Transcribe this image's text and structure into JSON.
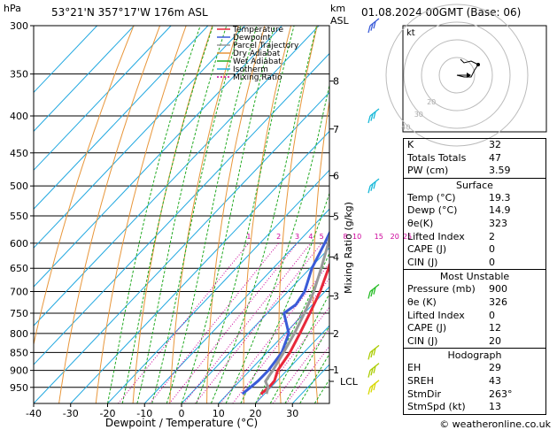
{
  "header": {
    "location": "53°21'N  357°17'W  176m  ASL",
    "datetime": "01.08.2024  00GMT  (Base: 06)",
    "pressure_unit": "hPa",
    "height_unit_1": "km",
    "height_unit_2": "ASL",
    "hodo_unit": "kt",
    "copyright": "© weatheronline.co.uk"
  },
  "chart_data": {
    "type": "line",
    "subtype": "skew-t log-p",
    "xlabel": "Dewpoint / Temperature (°C)",
    "ylabel_right": "Mixing Ratio (g/kg)",
    "x_ticks": [
      -40,
      -30,
      -20,
      -10,
      0,
      10,
      20,
      30
    ],
    "xlim": [
      -40,
      40
    ],
    "p_ticks": [
      300,
      350,
      400,
      450,
      500,
      550,
      600,
      650,
      700,
      750,
      800,
      850,
      900,
      950
    ],
    "plim": [
      300,
      1000
    ],
    "height_ticks": [
      {
        "km": "8",
        "p": 358
      },
      {
        "km": "7",
        "p": 417
      },
      {
        "km": "6",
        "p": 484
      },
      {
        "km": "5",
        "p": 551
      },
      {
        "km": "4",
        "p": 627
      },
      {
        "km": "3",
        "p": 710
      },
      {
        "km": "2",
        "p": 800
      },
      {
        "km": "1",
        "p": 898
      }
    ],
    "lcl": {
      "label": "LCL",
      "p": 932
    },
    "mixing_ratio_labels": [
      "1",
      "2",
      "3",
      "4",
      "5",
      "8",
      "10",
      "15",
      "20",
      "25"
    ],
    "mixing_ratio_values": [
      1,
      2,
      3,
      4,
      5,
      8,
      10,
      15,
      20,
      25
    ],
    "legend": [
      "Temperature",
      "Dewpoint",
      "Parcel Trajectory",
      "Dry Adiabat",
      "Wet Adiabat",
      "Isotherm",
      "Mixing Ratio"
    ],
    "series": [
      {
        "name": "Temperature",
        "color": "#e8283a",
        "points": [
          [
            300,
            -41
          ],
          [
            350,
            -31
          ],
          [
            400,
            -22.5
          ],
          [
            450,
            -15
          ],
          [
            500,
            -9
          ],
          [
            550,
            -3.5
          ],
          [
            600,
            0.8
          ],
          [
            650,
            5
          ],
          [
            700,
            8.7
          ],
          [
            750,
            11.5
          ],
          [
            800,
            14
          ],
          [
            850,
            16.2
          ],
          [
            900,
            17.5
          ],
          [
            930,
            19.3
          ],
          [
            950,
            19.5
          ],
          [
            970,
            19
          ]
        ]
      },
      {
        "name": "Dewpoint",
        "color": "#3a5bd8",
        "points": [
          [
            300,
            -42
          ],
          [
            350,
            -32
          ],
          [
            400,
            -25
          ],
          [
            430,
            -24
          ],
          [
            450,
            -22
          ],
          [
            500,
            -13
          ],
          [
            550,
            -6
          ],
          [
            600,
            -2.5
          ],
          [
            650,
            0.5
          ],
          [
            700,
            4.5
          ],
          [
            730,
            5.5
          ],
          [
            750,
            4.5
          ],
          [
            800,
            11
          ],
          [
            850,
            14
          ],
          [
            900,
            15
          ],
          [
            930,
            14.9
          ],
          [
            950,
            14.5
          ],
          [
            970,
            14
          ]
        ]
      },
      {
        "name": "Parcel Trajectory",
        "color": "#999999",
        "points": [
          [
            300,
            -40
          ],
          [
            350,
            -33
          ],
          [
            400,
            -27
          ],
          [
            450,
            -20
          ],
          [
            500,
            -13
          ],
          [
            550,
            -7
          ],
          [
            600,
            -1.5
          ],
          [
            650,
            3
          ],
          [
            700,
            7
          ],
          [
            750,
            10
          ],
          [
            800,
            12.5
          ],
          [
            850,
            14.5
          ],
          [
            900,
            16.2
          ],
          [
            932,
            17
          ],
          [
            950,
            19.3
          ],
          [
            970,
            20.5
          ]
        ]
      }
    ],
    "wind_barbs": [
      {
        "p": 300,
        "color": "#3a5bd8"
      },
      {
        "p": 400,
        "color": "#17b8d8"
      },
      {
        "p": 500,
        "color": "#17b8d8"
      },
      {
        "p": 700,
        "color": "#22bb22"
      },
      {
        "p": 850,
        "color": "#aacc00"
      },
      {
        "p": 900,
        "color": "#aacc00"
      },
      {
        "p": 950,
        "color": "#d8d800"
      }
    ],
    "hodograph": {
      "ring_labels": [
        "20",
        "30",
        "40"
      ],
      "trace_kt": [
        [
          0,
          0
        ],
        [
          4,
          -1
        ],
        [
          8,
          -1
        ],
        [
          10,
          3
        ],
        [
          12,
          6
        ],
        [
          8,
          8
        ],
        [
          4,
          7
        ],
        [
          2,
          9
        ]
      ]
    }
  },
  "indices": {
    "rows": [
      {
        "label": "K",
        "value": "32"
      },
      {
        "label": "Totals Totals",
        "value": "47"
      },
      {
        "label": "PW (cm)",
        "value": "3.59"
      }
    ],
    "surface": {
      "title": "Surface",
      "rows": [
        {
          "label": "Temp (°C)",
          "value": "19.3"
        },
        {
          "label": "Dewp (°C)",
          "value": "14.9"
        },
        {
          "label": "θe(K)",
          "value": "323"
        },
        {
          "label": "Lifted Index",
          "value": "2"
        },
        {
          "label": "CAPE (J)",
          "value": "0"
        },
        {
          "label": "CIN (J)",
          "value": "0"
        }
      ]
    },
    "most_unstable": {
      "title": "Most Unstable",
      "rows": [
        {
          "label": "Pressure (mb)",
          "value": "900"
        },
        {
          "label": "θe (K)",
          "value": "326"
        },
        {
          "label": "Lifted Index",
          "value": "0"
        },
        {
          "label": "CAPE (J)",
          "value": "12"
        },
        {
          "label": "CIN (J)",
          "value": "20"
        }
      ]
    },
    "hodograph": {
      "title": "Hodograph",
      "rows": [
        {
          "label": "EH",
          "value": "29"
        },
        {
          "label": "SREH",
          "value": "43"
        },
        {
          "label": "StmDir",
          "value": "263°"
        },
        {
          "label": "StmSpd (kt)",
          "value": "13"
        }
      ]
    }
  },
  "colors": {
    "temperature": "#e8283a",
    "dewpoint": "#3a5bd8",
    "parcel": "#999999",
    "dry_adiabat": "#e8963a",
    "wet_adiabat": "#22aa22",
    "isotherm": "#21a8e0",
    "mixing_ratio": "#cc0099"
  }
}
